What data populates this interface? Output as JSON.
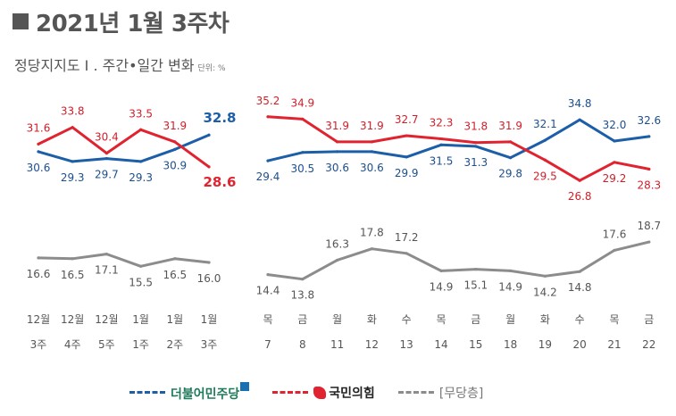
{
  "header": {
    "title": "2021년 1월 3주차",
    "subtitle": "정당지지도 I . 주간•일간 변화",
    "unit": "단위: %"
  },
  "legend": {
    "dem_label": "더불어민주당",
    "ppp_label": "국민의힘",
    "none_label": "[무당층]"
  },
  "colors": {
    "dem": "#1c5ea8",
    "ppp": "#e0232f",
    "none": "#8c8c8c",
    "label_text": "#333333"
  },
  "chart_data": [
    {
      "type": "line",
      "name": "weekly",
      "categories": [
        {
          "top": "12월",
          "bottom": "3주"
        },
        {
          "top": "12월",
          "bottom": "4주"
        },
        {
          "top": "12월",
          "bottom": "5주"
        },
        {
          "top": "1월",
          "bottom": "1주"
        },
        {
          "top": "1월",
          "bottom": "2주"
        },
        {
          "top": "1월",
          "bottom": "3주"
        }
      ],
      "series": [
        {
          "key": "dem",
          "values": [
            30.6,
            29.3,
            29.7,
            29.3,
            30.9,
            32.8
          ],
          "labels": [
            "30.6",
            "29.3",
            "29.7",
            "29.3",
            "30.9",
            "32.8"
          ]
        },
        {
          "key": "ppp",
          "values": [
            31.6,
            33.8,
            30.4,
            33.5,
            31.9,
            28.6
          ],
          "labels": [
            "31.6",
            "33.8",
            "30.4",
            "33.5",
            "31.9",
            "28.6"
          ]
        },
        {
          "key": "none",
          "values": [
            16.6,
            16.5,
            17.1,
            15.5,
            16.5,
            16.0
          ],
          "labels": [
            "16.6",
            "16.5",
            "17.1",
            "15.5",
            "16.5",
            "16.0"
          ]
        }
      ]
    },
    {
      "type": "line",
      "name": "daily",
      "categories": [
        {
          "top": "목",
          "bottom": "7"
        },
        {
          "top": "금",
          "bottom": "8"
        },
        {
          "top": "월",
          "bottom": "11"
        },
        {
          "top": "화",
          "bottom": "12"
        },
        {
          "top": "수",
          "bottom": "13"
        },
        {
          "top": "목",
          "bottom": "14"
        },
        {
          "top": "금",
          "bottom": "15"
        },
        {
          "top": "월",
          "bottom": "18"
        },
        {
          "top": "화",
          "bottom": "19"
        },
        {
          "top": "수",
          "bottom": "20"
        },
        {
          "top": "목",
          "bottom": "21"
        },
        {
          "top": "금",
          "bottom": "22"
        }
      ],
      "series": [
        {
          "key": "dem",
          "values": [
            29.4,
            30.5,
            30.6,
            30.6,
            29.9,
            31.5,
            31.3,
            29.8,
            32.1,
            34.8,
            32.0,
            32.6
          ],
          "labels": [
            "29.4",
            "30.5",
            "30.6",
            "30.6",
            "29.9",
            "31.5",
            "31.3",
            "29.8",
            "32.1",
            "34.8",
            "32.0",
            "32.6"
          ]
        },
        {
          "key": "ppp",
          "values": [
            35.2,
            34.9,
            31.9,
            31.9,
            32.7,
            32.3,
            31.8,
            31.9,
            29.5,
            26.8,
            29.2,
            28.3
          ],
          "labels": [
            "35.2",
            "34.9",
            "31.9",
            "31.9",
            "32.7",
            "32.3",
            "31.8",
            "31.9",
            "29.5",
            "26.8",
            "29.2",
            "28.3"
          ]
        },
        {
          "key": "none",
          "values": [
            14.4,
            13.8,
            16.3,
            17.8,
            17.2,
            14.9,
            15.1,
            14.9,
            14.2,
            14.8,
            17.6,
            18.7
          ],
          "labels": [
            "14.4",
            "13.8",
            "16.3",
            "17.8",
            "17.2",
            "14.9",
            "15.1",
            "14.9",
            "14.2",
            "14.8",
            "17.6",
            "18.7"
          ]
        }
      ]
    }
  ]
}
